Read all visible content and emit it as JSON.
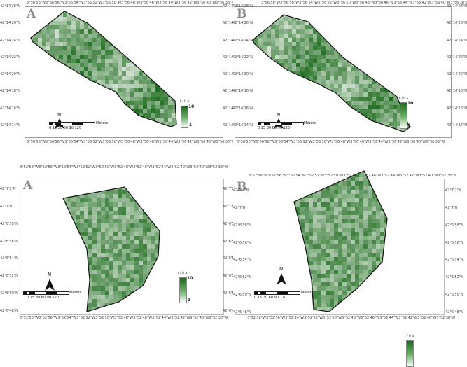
{
  "panels": [
    {
      "label": "A",
      "ticks_top": [
        "3°56'58\"W",
        "3°56'56\"W",
        "3°56'54\"W",
        "3°56'52\"W",
        "3°56'50\"W",
        "3°56'48\"W",
        "3°56'46\"W",
        "3°56'44\"W",
        "3°56'42\"W",
        "3°56'40\"W",
        "3°56'38\"W"
      ],
      "ticks_left": [
        "42°14'28\"N",
        "42°14'26\"N",
        "42°14'24\"N",
        "42°14'22\"N",
        "42°14'20\"N",
        "42°14'18\"N",
        "42°14'16\"N",
        "42°14'14\"N"
      ],
      "scale_labels": "0 15 30    60    90    120",
      "scale_unit": "Meters",
      "north": "N",
      "legend_title": "t / h a",
      "legend_max": "10",
      "legend_min": "1"
    },
    {
      "label": "B",
      "ticks_top": [
        "3°56'58\"W",
        "3°56'56\"W",
        "3°56'54\"W",
        "3°56'52\"W",
        "3°56'50\"W",
        "3°56'48\"W",
        "3°56'46\"W",
        "3°56'44\"W",
        "3°56'42\"W",
        "3°56'40\"W",
        "3°56'38\"W"
      ],
      "ticks_left": [
        "42°14'28\"N",
        "42°14'26\"N",
        "42°14'24\"N",
        "42°14'22\"N",
        "42°14'20\"N",
        "42°14'18\"N",
        "42°14'16\"N",
        "42°14'14\"N"
      ],
      "scale_labels": "0 15 30    60    90    120",
      "scale_unit": "Meters",
      "north": "N",
      "legend_title": "t / h a",
      "legend_max": "10",
      "legend_min": "1"
    },
    {
      "label": "A",
      "ticks_top": [
        "3°52'58\"W",
        "3°52'56\"W",
        "3°52'54\"W",
        "3°52'52\"W",
        "3°52'50\"W",
        "3°52'48\"W",
        "3°52'46\"W",
        "3°52'44\"W",
        "3°52'42\"W",
        "3°52'40\"W",
        "3°52'38\"W"
      ],
      "ticks_left": [
        "42°7'2\"N",
        "42°7'N",
        "42°6'58\"N",
        "42°6'56\"N",
        "42°6'54\"N",
        "42°6'52\"N",
        "42°6'50\"N",
        "42°6'48\"N"
      ],
      "scale_labels": "0 15 30    60    90    120",
      "scale_unit": "Meters",
      "north": "N",
      "legend_title": "t / h a",
      "legend_max": "10",
      "legend_min": "1"
    },
    {
      "label": "B",
      "ticks_top": [
        "3°52'58\"W",
        "3°52'56\"W",
        "3°52'54\"W",
        "3°52'52\"W",
        "3°52'50\"W",
        "3°52'48\"W",
        "3°52'46\"W",
        "3°52'44\"W",
        "3°52'42\"W",
        "3°52'40\"W",
        "3°52'38\"W"
      ],
      "ticks_left": [
        "42°7'2\"N",
        "42°7'N",
        "42°6'58\"N",
        "42°6'56\"N",
        "42°6'54\"N",
        "42°6'52\"N",
        "42°6'50\"N",
        "42°6'48\"N"
      ],
      "scale_labels": "0 15 30    60    90    120",
      "scale_unit": "Meters",
      "north": "N",
      "legend_title": "t / h a",
      "legend_max": "10",
      "legend_min": "1"
    }
  ],
  "colors": {
    "field_outline": "#111111",
    "yield_high": "#1c6a1c",
    "yield_low": "#ffffff"
  }
}
